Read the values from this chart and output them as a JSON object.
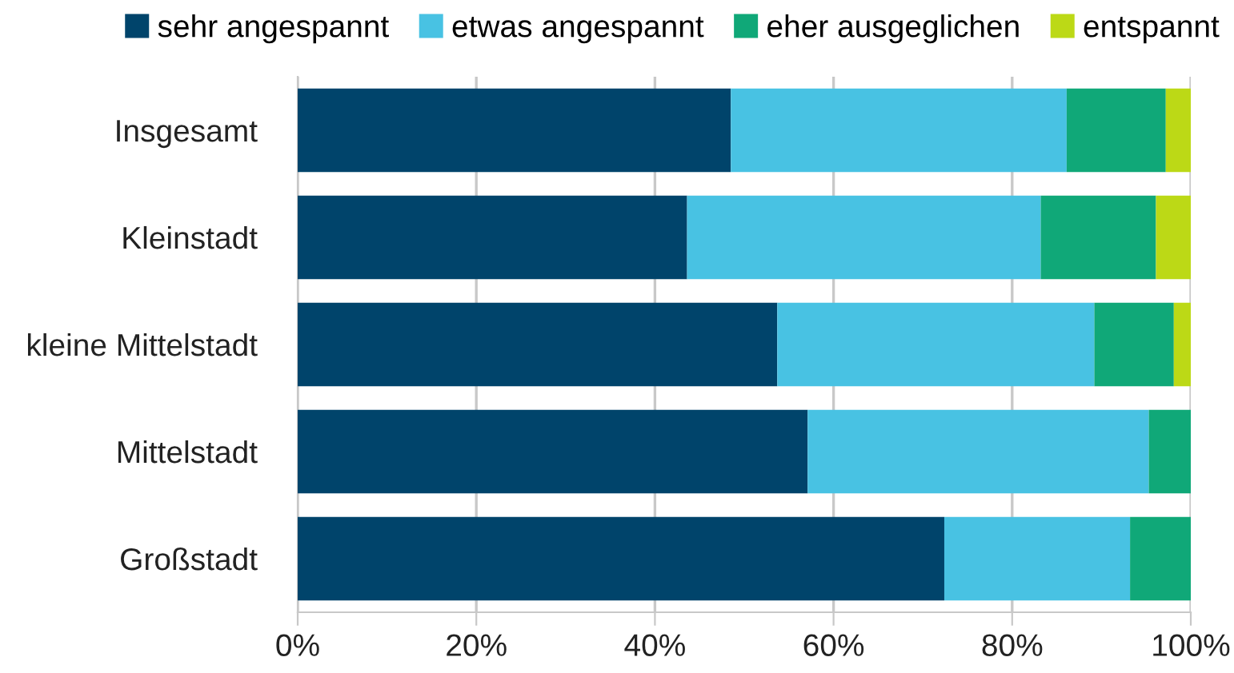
{
  "chart_data": {
    "type": "bar",
    "orientation": "horizontal",
    "stacked": true,
    "categories": [
      "Insgesamt",
      "Kleinstadt",
      "kleine Mittelstadt",
      "Mittelstadt",
      "Großstadt"
    ],
    "series": [
      {
        "name": "sehr angespannt",
        "color": "#00446b",
        "values": [
          48.5,
          43.6,
          53.7,
          57.1,
          72.4
        ]
      },
      {
        "name": "etwas angespannt",
        "color": "#48c2e3",
        "values": [
          37.6,
          39.6,
          35.5,
          38.2,
          20.8
        ]
      },
      {
        "name": "eher ausgeglichen",
        "color": "#10a878",
        "values": [
          11.1,
          12.9,
          8.9,
          4.7,
          6.8
        ]
      },
      {
        "name": "entspannt",
        "color": "#bcd916",
        "values": [
          2.8,
          3.9,
          1.9,
          0,
          0
        ]
      }
    ],
    "xlim": [
      0,
      100
    ],
    "xticks": [
      {
        "value": 0,
        "label": "0%"
      },
      {
        "value": 20,
        "label": "20%"
      },
      {
        "value": 40,
        "label": "40%"
      },
      {
        "value": 60,
        "label": "60%"
      },
      {
        "value": 80,
        "label": "80%"
      },
      {
        "value": 100,
        "label": "100%"
      }
    ],
    "grid": "x",
    "legend": "top"
  }
}
